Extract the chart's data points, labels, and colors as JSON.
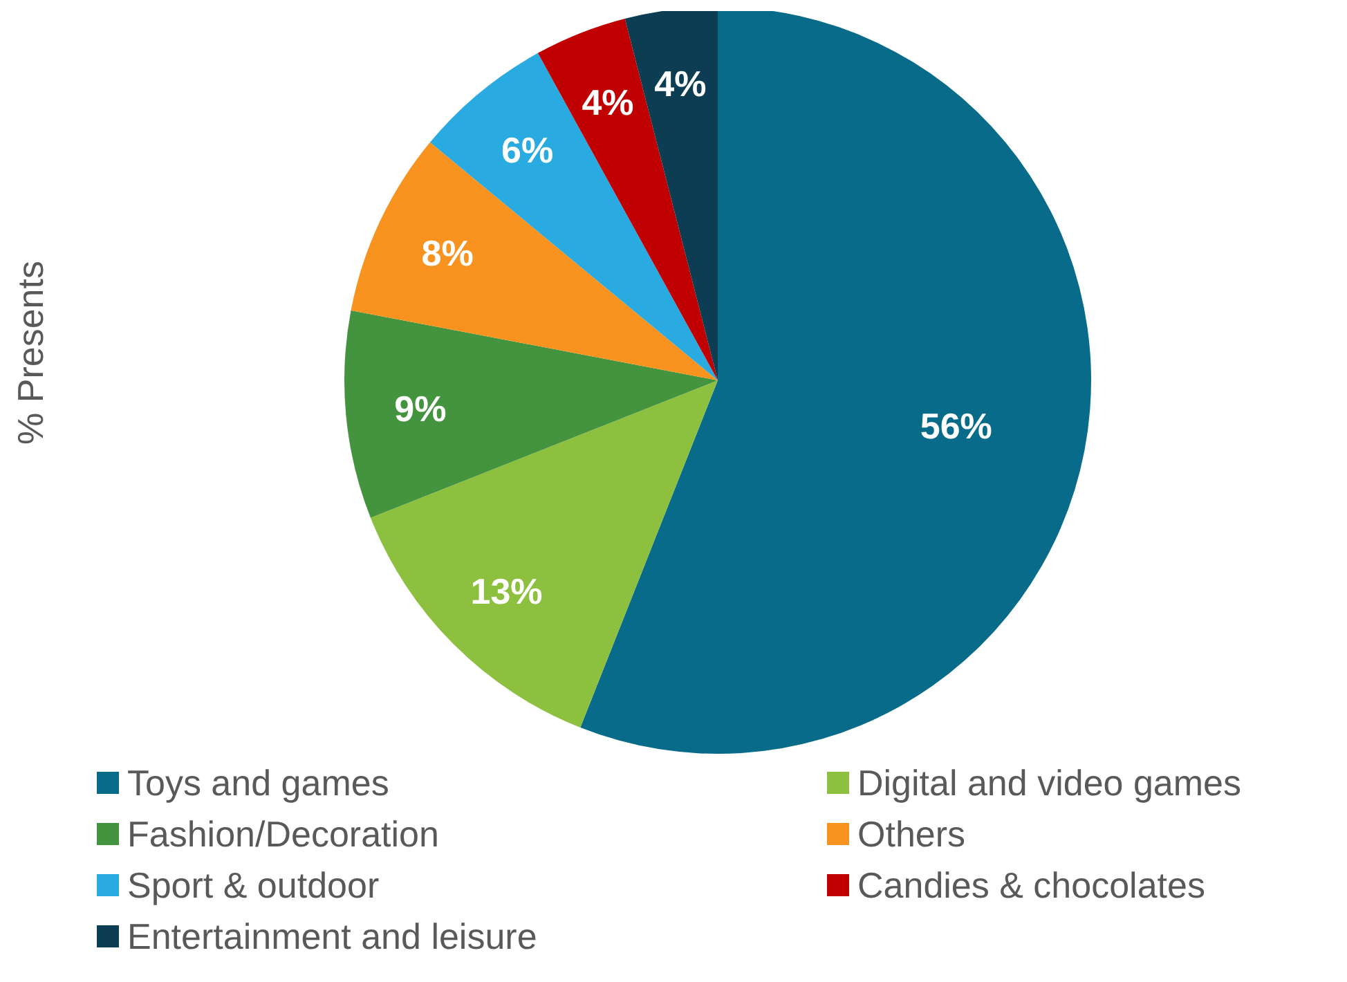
{
  "chart_data": {
    "type": "pie",
    "ylabel": "% Presents",
    "categories": [
      "Toys and games",
      "Digital and video games",
      "Fashion/Decoration",
      "Others",
      "Sport & outdoor",
      "Candies & chocolates",
      "Entertainment and leisure"
    ],
    "values": [
      56,
      13,
      9,
      8,
      6,
      4,
      4
    ],
    "colors": [
      "#086b8a",
      "#8dc03f",
      "#44943f",
      "#f7931e",
      "#29aae1",
      "#c00000",
      "#0d3d52"
    ],
    "value_labels": [
      "56%",
      "13%",
      "9%",
      "8%",
      "6%",
      "4%",
      "4%"
    ],
    "legend": "bottom"
  }
}
